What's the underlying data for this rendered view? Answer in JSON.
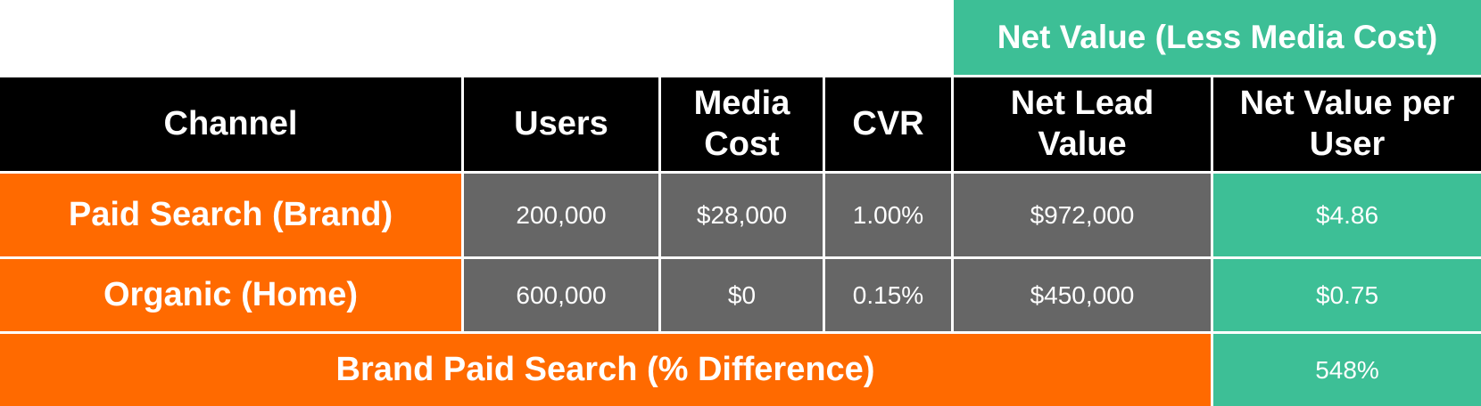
{
  "super_header": "Net Value (Less Media Cost)",
  "table": {
    "headers": [
      "Channel",
      "Users",
      "Media Cost",
      "CVR",
      "Net Lead Value",
      "Net Value per User"
    ],
    "rows": [
      [
        "Paid Search (Brand)",
        "200,000",
        "$28,000",
        "1.00%",
        "$972,000",
        "$4.86"
      ],
      [
        "Organic (Home)",
        "600,000",
        "$0",
        "0.15%",
        "$450,000",
        "$0.75"
      ]
    ],
    "summary": {
      "label": "Brand Paid Search (% Difference)",
      "value": "548%"
    }
  }
}
